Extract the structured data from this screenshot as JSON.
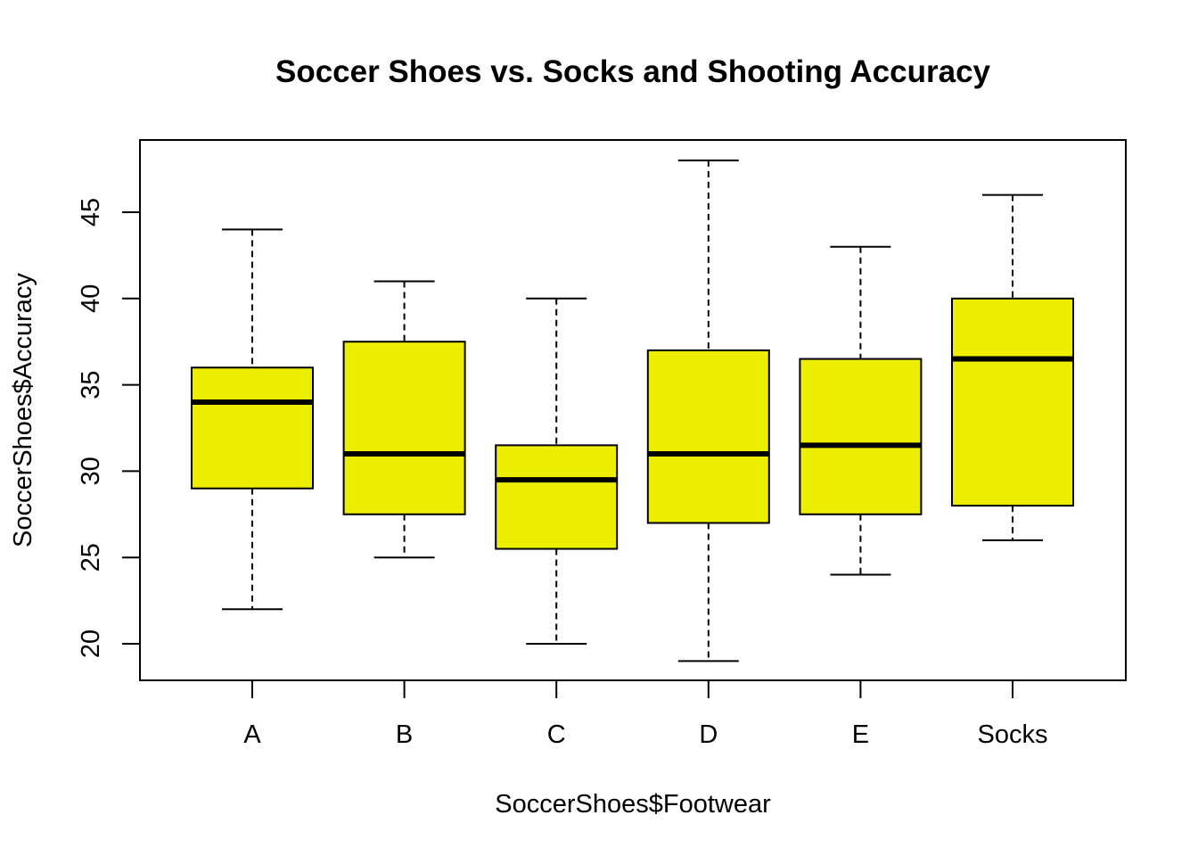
{
  "chart_data": {
    "type": "boxplot",
    "title": "Soccer Shoes vs. Socks and Shooting Accuracy",
    "xlabel": "SoccerShoes$Footwear",
    "ylabel": "SoccerShoes$Accuracy",
    "categories": [
      "A",
      "B",
      "C",
      "D",
      "E",
      "Socks"
    ],
    "boxes": [
      {
        "category": "A",
        "min": 22,
        "q1": 29,
        "median": 34,
        "q3": 36,
        "max": 44
      },
      {
        "category": "B",
        "min": 25,
        "q1": 27.5,
        "median": 31,
        "q3": 37.5,
        "max": 41
      },
      {
        "category": "C",
        "min": 20,
        "q1": 25.5,
        "median": 29.5,
        "q3": 31.5,
        "max": 40
      },
      {
        "category": "D",
        "min": 19,
        "q1": 27,
        "median": 31,
        "q3": 37,
        "max": 48
      },
      {
        "category": "E",
        "min": 24,
        "q1": 27.5,
        "median": 31.5,
        "q3": 36.5,
        "max": 43
      },
      {
        "category": "Socks",
        "min": 26,
        "q1": 28,
        "median": 36.5,
        "q3": 40,
        "max": 46
      }
    ],
    "yticks": [
      20,
      25,
      30,
      35,
      40,
      45
    ],
    "ylim": [
      18.5,
      48.5
    ],
    "grid": false,
    "legend": "none",
    "box_fill": "#EEEE00",
    "line_color": "#000000"
  }
}
